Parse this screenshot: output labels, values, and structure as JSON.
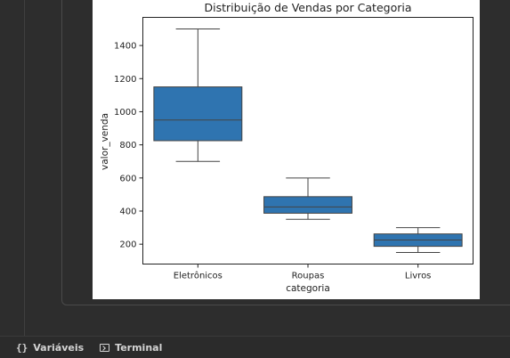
{
  "chart_data": {
    "type": "box",
    "title": "Distribuição de Vendas por Categoria",
    "xlabel": "categoria",
    "ylabel": "valor_venda",
    "categories": [
      "Eletrônicos",
      "Roupas",
      "Livros"
    ],
    "boxes": [
      {
        "whislo": 700,
        "q1": 825,
        "med": 950,
        "q3": 1150,
        "whishi": 1500
      },
      {
        "whislo": 350,
        "q1": 387,
        "med": 425,
        "q3": 487,
        "whishi": 600
      },
      {
        "whislo": 150,
        "q1": 187,
        "med": 225,
        "q3": 262,
        "whishi": 300
      }
    ],
    "yticks": [
      200,
      400,
      600,
      800,
      1000,
      1200,
      1400
    ],
    "ylim": [
      80,
      1570
    ],
    "box_color": "#2f74b0",
    "grid": false
  },
  "statusbar": {
    "variables_label": "Variáveis",
    "variables_icon": "braces-icon",
    "terminal_label": "Terminal",
    "terminal_icon": "terminal-icon"
  }
}
